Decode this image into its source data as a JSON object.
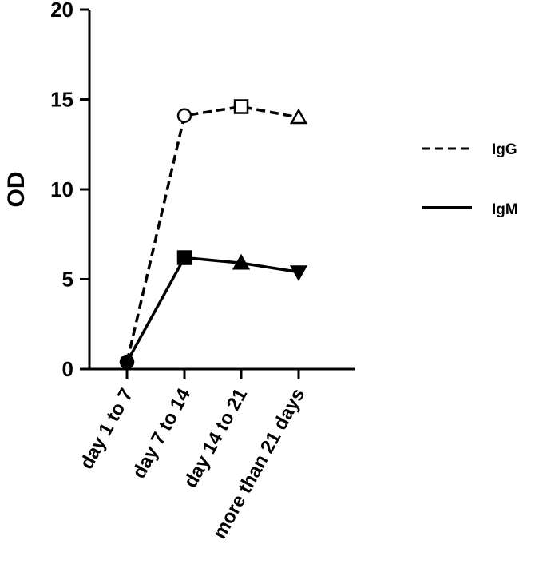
{
  "chart_data": {
    "type": "line",
    "title": "",
    "xlabel": "",
    "ylabel": "OD",
    "ylim": [
      0,
      20
    ],
    "yticks": [
      "0",
      "5",
      "10",
      "15",
      "20"
    ],
    "categories": [
      "day 1 to 7",
      "day 7 to 14",
      "day 14 to 21",
      "more than 21 days"
    ],
    "series": [
      {
        "name": "IgG",
        "values": [
          0.4,
          14.1,
          14.6,
          14.0
        ],
        "style": "dashed",
        "markers": [
          "circle-filled",
          "circle-open",
          "square-open",
          "triangle-open"
        ]
      },
      {
        "name": "IgM",
        "values": [
          0.4,
          6.2,
          5.9,
          5.4
        ],
        "style": "solid",
        "markers": [
          "circle-filled",
          "square-filled",
          "triangle-filled",
          "triangle-down-filled"
        ]
      }
    ],
    "grid": false,
    "legend_position": "right"
  }
}
